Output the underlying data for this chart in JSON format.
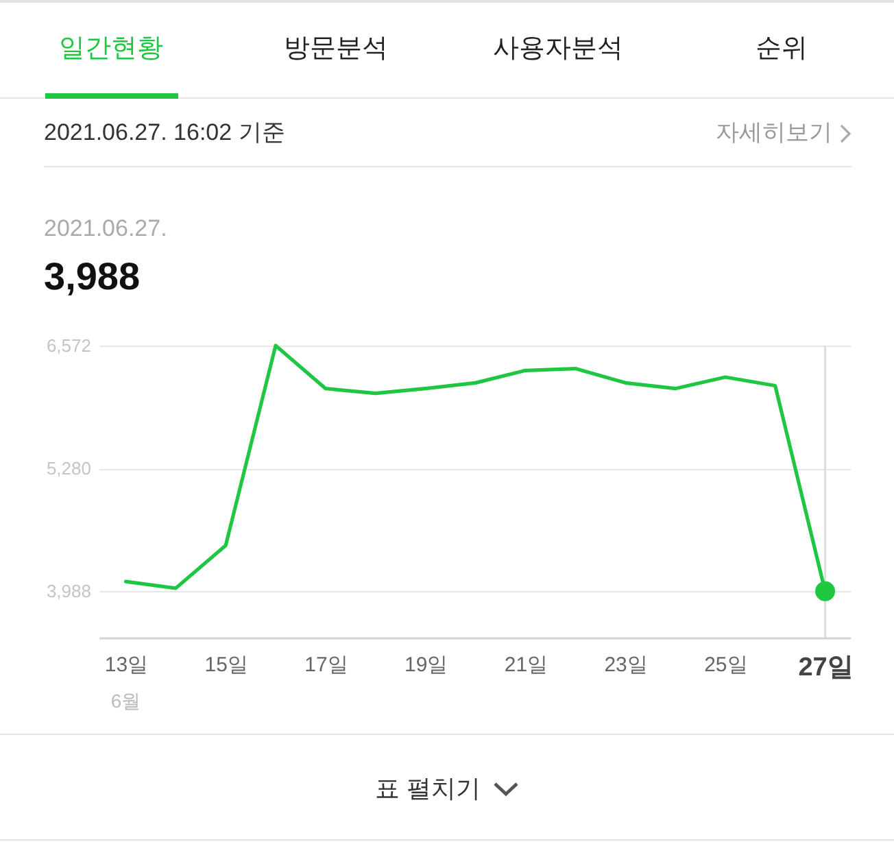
{
  "chart_data": {
    "type": "line",
    "annotations": [
      "일간현황",
      "방문분석",
      "사용자분석",
      "순위",
      "2021.06.27. 16:02 기준",
      "자세히보기",
      "2021.06.27.",
      "3,988",
      "6월",
      "표 펼치기"
    ],
    "x": [
      "2021-06-13",
      "2021-06-14",
      "2021-06-15",
      "2021-06-16",
      "2021-06-17",
      "2021-06-18",
      "2021-06-19",
      "2021-06-20",
      "2021-06-21",
      "2021-06-22",
      "2021-06-23",
      "2021-06-24",
      "2021-06-25",
      "2021-06-26",
      "2021-06-27"
    ],
    "series": [
      {
        "type": "line",
        "color": "#1ec641",
        "values": [
          4090,
          4020,
          4470,
          6572,
          6120,
          6070,
          6120,
          6180,
          6310,
          6330,
          6180,
          6120,
          6240,
          6150,
          3988
        ]
      },
      {
        "type": "scatter",
        "x": [
          "2021-06-27"
        ],
        "color": "#1ec641",
        "values": [
          3988
        ]
      }
    ],
    "xlim": [
      "2021-06-12T11:00",
      "2021-06-27T12:00"
    ],
    "xticks": [
      {
        "value": "2021-06-13",
        "label": "13일"
      },
      {
        "value": "2021-06-15",
        "label": "15일"
      },
      {
        "value": "2021-06-17",
        "label": "17일"
      },
      {
        "value": "2021-06-19",
        "label": "19일"
      },
      {
        "value": "2021-06-21",
        "label": "21일"
      },
      {
        "value": "2021-06-23",
        "label": "23일"
      },
      {
        "value": "2021-06-25",
        "label": "25일"
      },
      {
        "value": "2021-06-27",
        "label": "27일"
      }
    ],
    "ylim": [
      3500,
      6572
    ],
    "yticks": [
      {
        "value": 3988,
        "label": "3,988"
      },
      {
        "value": 5280,
        "label": "5,280"
      },
      {
        "value": 6572,
        "label": "6,572"
      }
    ],
    "grid": "y",
    "ref_lines": [
      {
        "axis": "x",
        "value": "2021-06-27",
        "color": "#dcdcdc"
      }
    ]
  }
}
